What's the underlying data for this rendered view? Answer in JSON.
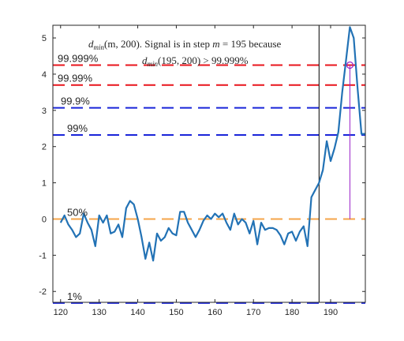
{
  "chart_data": {
    "type": "line",
    "title": "",
    "xlabel": "",
    "ylabel": "",
    "xlim": [
      118,
      199
    ],
    "ylim": [
      -2.3,
      5.35
    ],
    "xticks": [
      120,
      130,
      140,
      150,
      160,
      170,
      180,
      190
    ],
    "yticks": [
      -2,
      -1,
      0,
      1,
      2,
      3,
      4,
      5
    ],
    "grid": false,
    "series": [
      {
        "color": "#2272b5",
        "x": [
          120,
          121,
          122,
          123,
          124,
          125,
          126,
          127,
          128,
          129,
          130,
          131,
          132,
          133,
          134,
          135,
          136,
          137,
          138,
          139,
          140,
          141,
          142,
          143,
          144,
          145,
          146,
          147,
          148,
          149,
          150,
          151,
          152,
          153,
          154,
          155,
          156,
          157,
          158,
          159,
          160,
          161,
          162,
          163,
          164,
          165,
          166,
          167,
          168,
          169,
          170,
          171,
          172,
          173,
          174,
          175,
          176,
          177,
          178,
          179,
          180,
          181,
          182,
          183,
          184,
          185,
          186,
          187,
          188,
          189,
          190,
          191,
          192,
          193,
          194,
          195,
          196,
          197,
          198,
          199
        ],
        "y": [
          -0.1,
          0.1,
          -0.15,
          -0.3,
          -0.5,
          -0.4,
          0.15,
          -0.1,
          -0.3,
          -0.75,
          0.1,
          -0.1,
          0.1,
          -0.4,
          -0.35,
          -0.15,
          -0.5,
          0.3,
          0.5,
          0.4,
          0.0,
          -0.5,
          -1.1,
          -0.65,
          -1.15,
          -0.4,
          -0.6,
          -0.5,
          -0.25,
          -0.4,
          -0.45,
          0.2,
          0.2,
          -0.1,
          -0.3,
          -0.5,
          -0.3,
          -0.05,
          0.1,
          0.0,
          0.15,
          0.05,
          0.15,
          -0.1,
          -0.3,
          0.15,
          -0.15,
          0.0,
          -0.1,
          -0.4,
          -0.05,
          -0.7,
          -0.1,
          -0.3,
          -0.25,
          -0.25,
          -0.3,
          -0.45,
          -0.7,
          -0.4,
          -0.35,
          -0.6,
          -0.35,
          -0.2,
          -0.75,
          0.6,
          0.8,
          1.0,
          1.35,
          2.15,
          1.6,
          1.95,
          2.4,
          3.5,
          4.4,
          5.3,
          5.0,
          3.6,
          2.35,
          2.35
        ]
      }
    ],
    "thresholds": [
      {
        "label": "99.999%",
        "y": 4.25,
        "color": "#e8141c"
      },
      {
        "label": "99.99%",
        "y": 3.7,
        "color": "#e8141c"
      },
      {
        "label": "99.9%",
        "y": 3.07,
        "color": "#1a25d9"
      },
      {
        "label": "99%",
        "y": 2.32,
        "color": "#1a25d9"
      },
      {
        "label": "50%",
        "y": 0.0,
        "color": "#f5a54a"
      },
      {
        "label": "1%",
        "y": -2.32,
        "color": "#1a25d9"
      }
    ],
    "vertical_line_x": 187,
    "marker": {
      "x": 195,
      "y": 4.25,
      "color": "#9a21c9"
    },
    "annotation": {
      "line1_dmin": "d",
      "line1_sub": "min",
      "line1_args": "(m, 200). Signal is in step ",
      "line1_m": "m",
      "line1_rest": " = 195 because",
      "line2_dmin": "d",
      "line2_sub": "min",
      "line2_rest": "(195, 200) > 99.999%"
    }
  }
}
